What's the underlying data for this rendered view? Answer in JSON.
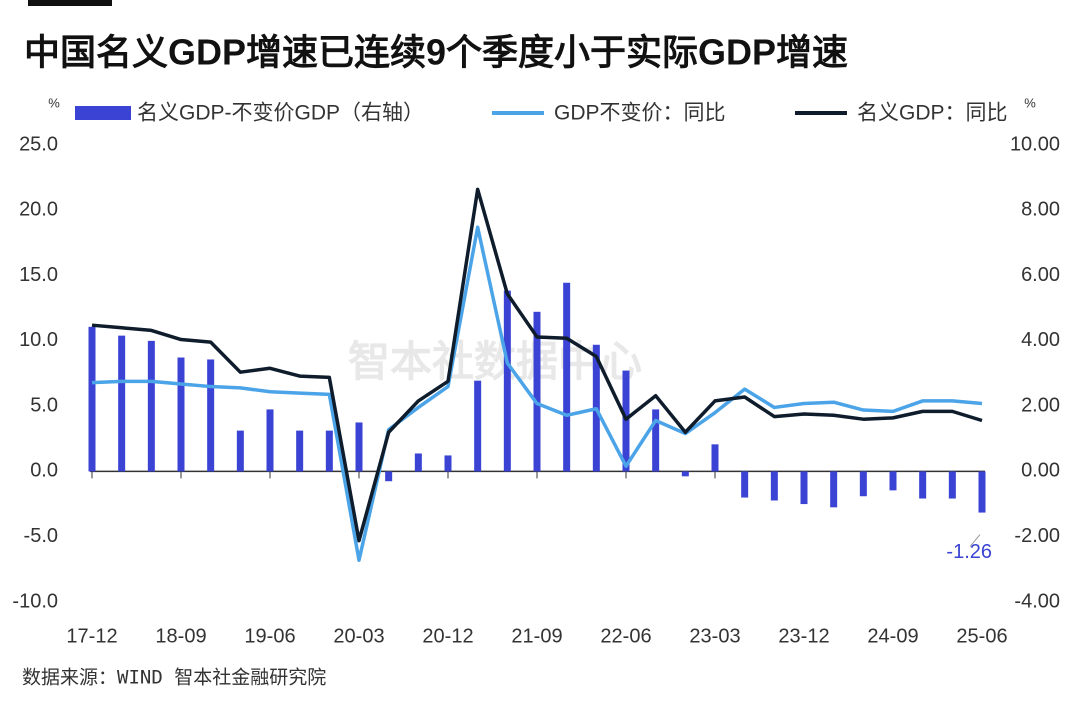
{
  "chart_data": {
    "type": "bar-line",
    "title": "中国名义GDP增速已连续9个季度小于实际GDP增速",
    "source": "数据来源：WIND 智本社金融研究院",
    "watermark": "智本社数据中心",
    "y_unit": "%",
    "y2_unit": "%",
    "categories": [
      "17-12",
      null,
      null,
      "18-09",
      null,
      null,
      "19-06",
      null,
      null,
      "20-03",
      null,
      null,
      "20-12",
      null,
      null,
      "21-09",
      null,
      null,
      "22-06",
      null,
      null,
      "23-03",
      null,
      null,
      "23-12",
      null,
      null,
      "24-09",
      null,
      null,
      "25-06"
    ],
    "ylim": [
      -10,
      25
    ],
    "yticks": [
      {
        "value": -10,
        "label": "-10.0"
      },
      {
        "value": -5,
        "label": "-5.0"
      },
      {
        "value": 0,
        "label": "0.0"
      },
      {
        "value": 5,
        "label": "5.0"
      },
      {
        "value": 10,
        "label": "10.0"
      },
      {
        "value": 15,
        "label": "15.0"
      },
      {
        "value": 20,
        "label": "20.0"
      },
      {
        "value": 25,
        "label": "25.0"
      }
    ],
    "y2lim": [
      -4,
      10
    ],
    "y2ticks": [
      {
        "value": -4,
        "label": "-4.00"
      },
      {
        "value": -2,
        "label": "-2.00"
      },
      {
        "value": 0,
        "label": "0.00"
      },
      {
        "value": 2,
        "label": "2.00"
      },
      {
        "value": 4,
        "label": "4.00"
      },
      {
        "value": 6,
        "label": "6.00"
      },
      {
        "value": 8,
        "label": "8.00"
      },
      {
        "value": 10,
        "label": "10.00"
      }
    ],
    "series": [
      {
        "name": "名义GDP-不变价GDP（右轴）",
        "type": "bar",
        "axis": "y2",
        "color": "#3a43d4",
        "values": [
          4.43,
          4.16,
          4.0,
          3.49,
          3.43,
          1.25,
          1.9,
          1.25,
          1.25,
          1.5,
          -0.3,
          0.55,
          0.49,
          2.78,
          5.54,
          4.89,
          5.78,
          3.88,
          3.09,
          1.9,
          -0.15,
          0.83,
          -0.8,
          -0.89,
          -1.0,
          -1.1,
          -0.76,
          -0.58,
          -0.83,
          -0.83,
          -1.26
        ]
      },
      {
        "name": "GDP不变价：同比",
        "type": "line",
        "color": "#4ba3e8",
        "values": [
          6.8,
          6.9,
          6.9,
          6.7,
          6.5,
          6.4,
          6.1,
          6.0,
          5.9,
          -6.8,
          3.2,
          4.9,
          6.5,
          18.7,
          8.3,
          5.2,
          4.3,
          4.8,
          0.4,
          3.9,
          2.9,
          4.5,
          6.3,
          4.9,
          5.2,
          5.3,
          4.7,
          4.6,
          5.4,
          5.4,
          5.2
        ]
      },
      {
        "name": "名义GDP：同比",
        "type": "line",
        "color": "#0e1c2c",
        "values": [
          11.2,
          11.0,
          10.8,
          10.1,
          9.9,
          7.6,
          7.9,
          7.3,
          7.2,
          -5.3,
          3.0,
          5.4,
          6.9,
          21.6,
          13.6,
          10.3,
          10.2,
          8.8,
          4.0,
          5.8,
          3.0,
          5.4,
          5.7,
          4.2,
          4.4,
          4.3,
          4.0,
          4.1,
          4.6,
          4.6,
          3.9
        ]
      }
    ]
  }
}
